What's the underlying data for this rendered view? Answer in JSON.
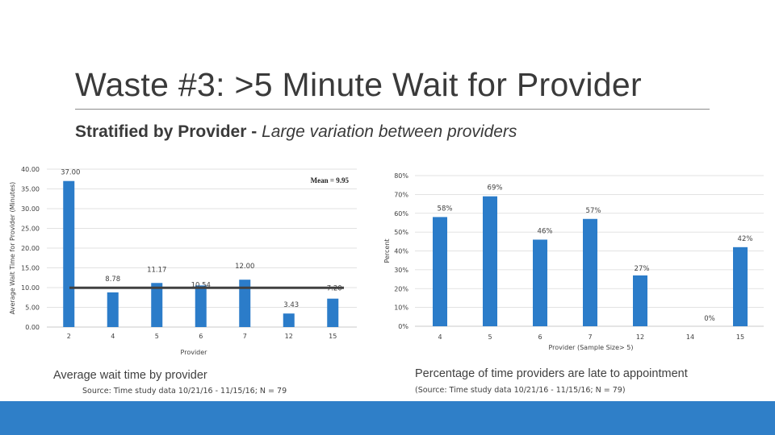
{
  "title": "Waste #3: >5 Minute Wait for Provider",
  "subtitle": {
    "bold": "Stratified by Provider - ",
    "italic": "Large variation between providers"
  },
  "colors": {
    "bar": "#2b7cc9",
    "mean_line": "#404040",
    "bottom_bar": "#2f7fc8"
  },
  "chart_data": [
    {
      "type": "bar",
      "title": "",
      "xlabel": "Provider",
      "ylabel": "Average Wait Time for Provider (Minutes)",
      "categories": [
        "2",
        "4",
        "5",
        "6",
        "7",
        "12",
        "15"
      ],
      "values": [
        37.0,
        8.78,
        11.17,
        10.54,
        12.0,
        3.43,
        7.2
      ],
      "value_labels": [
        "37.00",
        "8.78",
        "11.17",
        "10.54",
        "12.00",
        "3.43",
        "7.20"
      ],
      "ylim": [
        0,
        40
      ],
      "yticks": [
        "0.00",
        "5.00",
        "10.00",
        "15.00",
        "20.00",
        "25.00",
        "30.00",
        "35.00",
        "40.00"
      ],
      "grid": true,
      "mean": 9.95,
      "mean_label": "Mean = 9.95"
    },
    {
      "type": "bar",
      "title": "",
      "xlabel": "Provider (Sample Size> 5)",
      "ylabel": "Percent",
      "categories": [
        "4",
        "5",
        "6",
        "7",
        "12",
        "14",
        "15"
      ],
      "values": [
        58,
        69,
        46,
        57,
        27,
        0,
        42
      ],
      "value_labels": [
        "58%",
        "69%",
        "46%",
        "57%",
        "27%",
        "0%",
        "42%"
      ],
      "ylim": [
        0,
        80
      ],
      "yticks": [
        "0%",
        "10%",
        "20%",
        "30%",
        "40%",
        "50%",
        "60%",
        "70%",
        "80%"
      ],
      "grid": true
    }
  ],
  "captions": {
    "left": "Average wait time by provider",
    "left_source": "Source: Time study data 10/21/16 - 11/15/16; N = 79",
    "right": "Percentage of time providers are late to appointment",
    "right_source": "(Source: Time study data 10/21/16 - 11/15/16; N = 79)"
  }
}
